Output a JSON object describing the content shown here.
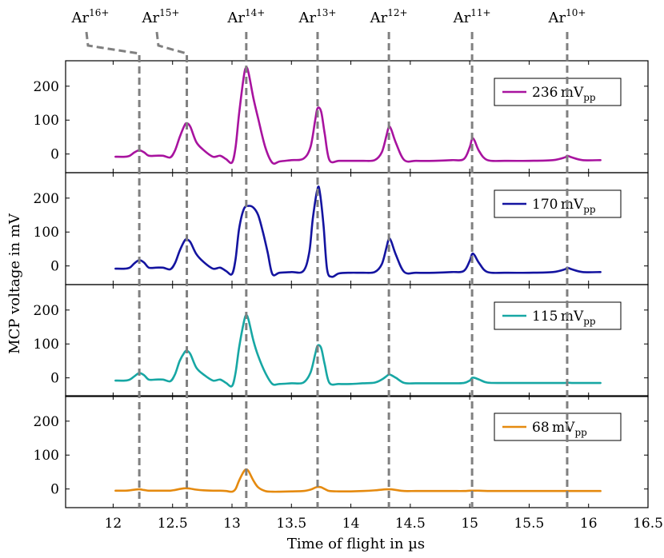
{
  "chart_data": {
    "type": "line",
    "xlabel": "Time of flight in  µs",
    "ylabel": "MCP voltage in mV",
    "xlim": [
      11.6,
      16.5
    ],
    "ylim": [
      -55,
      275
    ],
    "x_ticks": [
      "12",
      "12.5",
      "13",
      "13.5",
      "14",
      "14.5",
      "15",
      "15.5",
      "16",
      "16.5"
    ],
    "x_tick_values": [
      12,
      12.5,
      13,
      13.5,
      14,
      14.5,
      15,
      15.5,
      16,
      16.5
    ],
    "y_ticks": [
      "0",
      "100",
      "200"
    ],
    "y_tick_values": [
      0,
      100,
      200
    ],
    "grid": false,
    "legend_position": "top-right",
    "markers": [
      {
        "base": "Ar",
        "charge": "16+",
        "x": 12.22
      },
      {
        "base": "Ar",
        "charge": "15+",
        "x": 12.62
      },
      {
        "base": "Ar",
        "charge": "14+",
        "x": 13.12
      },
      {
        "base": "Ar",
        "charge": "13+",
        "x": 13.72
      },
      {
        "base": "Ar",
        "charge": "12+",
        "x": 14.32
      },
      {
        "base": "Ar",
        "charge": "11+",
        "x": 15.02
      },
      {
        "base": "Ar",
        "charge": "10+",
        "x": 15.82
      }
    ],
    "panels": [
      {
        "legend_value": "236",
        "legend_unit": "mV",
        "legend_sub": "pp",
        "color": "#a8139f",
        "baseline": -15,
        "x": [
          12.02,
          12.1,
          12.14,
          12.18,
          12.22,
          12.26,
          12.3,
          12.36,
          12.42,
          12.48,
          12.52,
          12.56,
          12.6,
          12.62,
          12.65,
          12.7,
          12.76,
          12.84,
          12.9,
          12.95,
          13.0,
          13.03,
          13.06,
          13.1,
          13.12,
          13.14,
          13.18,
          13.22,
          13.28,
          13.34,
          13.4,
          13.5,
          13.6,
          13.66,
          13.7,
          13.72,
          13.75,
          13.78,
          13.82,
          13.9,
          14.0,
          14.1,
          14.2,
          14.26,
          14.3,
          14.32,
          14.34,
          14.38,
          14.45,
          14.55,
          14.7,
          14.85,
          14.95,
          15.0,
          15.02,
          15.04,
          15.08,
          15.15,
          15.3,
          15.5,
          15.7,
          15.8,
          15.82,
          15.86,
          15.95,
          16.1
        ],
        "y": [
          -8,
          -8,
          -5,
          5,
          11,
          5,
          -5,
          -5,
          -5,
          -10,
          10,
          50,
          84,
          91,
          80,
          35,
          12,
          -8,
          -5,
          -15,
          -25,
          20,
          120,
          230,
          255,
          238,
          165,
          105,
          20,
          -26,
          -22,
          -18,
          -14,
          20,
          100,
          135,
          125,
          60,
          -18,
          -20,
          -20,
          -20,
          -18,
          5,
          55,
          80,
          72,
          32,
          -18,
          -20,
          -20,
          -18,
          -15,
          20,
          45,
          40,
          8,
          -18,
          -20,
          -20,
          -18,
          -10,
          -5,
          -10,
          -18,
          -18
        ]
      },
      {
        "legend_value": "170",
        "legend_unit": "mV",
        "legend_sub": "pp",
        "color": "#1414a0",
        "baseline": -15,
        "x": [
          12.02,
          12.1,
          12.14,
          12.18,
          12.22,
          12.26,
          12.3,
          12.36,
          12.42,
          12.48,
          12.52,
          12.56,
          12.6,
          12.62,
          12.65,
          12.7,
          12.76,
          12.84,
          12.9,
          12.95,
          13.0,
          13.03,
          13.06,
          13.1,
          13.14,
          13.18,
          13.22,
          13.26,
          13.3,
          13.34,
          13.4,
          13.5,
          13.6,
          13.65,
          13.68,
          13.72,
          13.74,
          13.77,
          13.8,
          13.84,
          13.9,
          14.0,
          14.1,
          14.2,
          14.26,
          14.3,
          14.32,
          14.34,
          14.38,
          14.45,
          14.55,
          14.7,
          14.85,
          14.95,
          15.0,
          15.02,
          15.04,
          15.08,
          15.15,
          15.3,
          15.5,
          15.7,
          15.8,
          15.82,
          15.86,
          15.95,
          16.1
        ],
        "y": [
          -8,
          -8,
          -5,
          8,
          17,
          10,
          -5,
          -5,
          -5,
          -10,
          8,
          45,
          74,
          78,
          70,
          35,
          12,
          -8,
          -5,
          -15,
          -24,
          20,
          110,
          168,
          177,
          172,
          150,
          100,
          40,
          -24,
          -20,
          -18,
          -15,
          40,
          140,
          228,
          215,
          120,
          -10,
          -32,
          -22,
          -20,
          -20,
          -18,
          5,
          55,
          80,
          72,
          32,
          -18,
          -20,
          -20,
          -18,
          -15,
          15,
          35,
          32,
          8,
          -18,
          -20,
          -20,
          -18,
          -10,
          -5,
          -10,
          -18,
          -18
        ]
      },
      {
        "legend_value": "115",
        "legend_unit": "mV",
        "legend_sub": "pp",
        "color": "#17a7a4",
        "baseline": -15,
        "x": [
          12.02,
          12.1,
          12.14,
          12.18,
          12.22,
          12.26,
          12.3,
          12.36,
          12.42,
          12.48,
          12.52,
          12.56,
          12.6,
          12.62,
          12.65,
          12.7,
          12.76,
          12.84,
          12.9,
          12.95,
          13.0,
          13.03,
          13.06,
          13.1,
          13.12,
          13.14,
          13.18,
          13.22,
          13.28,
          13.34,
          13.4,
          13.5,
          13.6,
          13.66,
          13.7,
          13.72,
          13.75,
          13.78,
          13.82,
          13.9,
          14.0,
          14.1,
          14.2,
          14.26,
          14.3,
          14.32,
          14.34,
          14.38,
          14.45,
          14.55,
          14.7,
          14.85,
          14.95,
          15.0,
          15.02,
          15.04,
          15.08,
          15.15,
          15.3,
          15.5,
          15.7,
          15.8,
          15.82,
          15.86,
          15.95,
          16.1
        ],
        "y": [
          -8,
          -8,
          -5,
          5,
          14,
          8,
          -5,
          -5,
          -5,
          -10,
          10,
          50,
          75,
          80,
          70,
          30,
          10,
          -8,
          -5,
          -15,
          -24,
          15,
          90,
          165,
          185,
          170,
          110,
          65,
          15,
          -18,
          -18,
          -16,
          -14,
          15,
          70,
          95,
          88,
          40,
          -15,
          -18,
          -18,
          -16,
          -14,
          -5,
          5,
          10,
          8,
          0,
          -15,
          -16,
          -16,
          -16,
          -15,
          -8,
          0,
          0,
          -5,
          -14,
          -15,
          -15,
          -15,
          -15,
          -14,
          -15,
          -15,
          -15
        ]
      },
      {
        "legend_value": "68",
        "legend_unit": "mV",
        "legend_sub": "pp",
        "color": "#e58a0f",
        "baseline": -5,
        "x": [
          12.02,
          12.1,
          12.14,
          12.18,
          12.22,
          12.26,
          12.3,
          12.36,
          12.42,
          12.48,
          12.52,
          12.56,
          12.6,
          12.62,
          12.65,
          12.7,
          12.76,
          12.84,
          12.9,
          12.95,
          13.0,
          13.03,
          13.06,
          13.1,
          13.12,
          13.14,
          13.18,
          13.22,
          13.28,
          13.34,
          13.4,
          13.5,
          13.6,
          13.66,
          13.7,
          13.72,
          13.75,
          13.78,
          13.82,
          13.9,
          14.0,
          14.1,
          14.2,
          14.26,
          14.3,
          14.32,
          14.34,
          14.38,
          14.45,
          14.55,
          14.7,
          14.85,
          14.95,
          15.0,
          15.02,
          15.04,
          15.08,
          15.15,
          15.3,
          15.5,
          15.7,
          15.8,
          15.82,
          15.86,
          15.95,
          16.1
        ],
        "y": [
          -5,
          -5,
          -4,
          -2,
          -1,
          -3,
          -5,
          -5,
          -5,
          -5,
          -3,
          0,
          2,
          2,
          1,
          -2,
          -4,
          -5,
          -5,
          -6,
          -8,
          0,
          25,
          52,
          58,
          52,
          25,
          5,
          -6,
          -8,
          -8,
          -7,
          -6,
          -2,
          4,
          6,
          5,
          0,
          -6,
          -7,
          -7,
          -6,
          -4,
          -2,
          -1,
          -1,
          -1,
          -3,
          -6,
          -6,
          -6,
          -6,
          -6,
          -5,
          -5,
          -5,
          -5,
          -6,
          -6,
          -6,
          -6,
          -6,
          -6,
          -6,
          -6,
          -6
        ]
      }
    ]
  }
}
